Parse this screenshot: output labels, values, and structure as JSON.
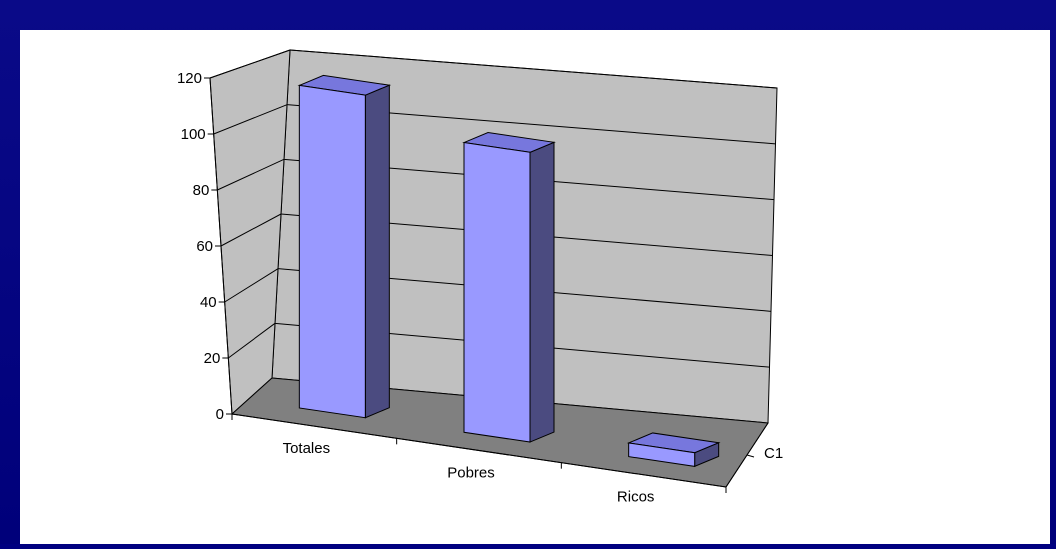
{
  "chart_data": {
    "type": "bar",
    "categories": [
      "Totales",
      "Pobres",
      "Ricos"
    ],
    "series": [
      {
        "name": "",
        "values": [
          118,
          106,
          5
        ]
      }
    ],
    "depth_labels": [
      "C1"
    ],
    "y_ticks": [
      "0",
      "20",
      "40",
      "60",
      "80",
      "100",
      "120"
    ],
    "ylim": [
      0,
      120
    ],
    "grid": true,
    "view": "3d-column",
    "colors": {
      "bar_front": "#9999ff",
      "bar_top": "#7777dd",
      "bar_side": "#4b4b80",
      "wall": "#c0c0c0",
      "floor": "#808080",
      "gridline": "#000000"
    }
  }
}
